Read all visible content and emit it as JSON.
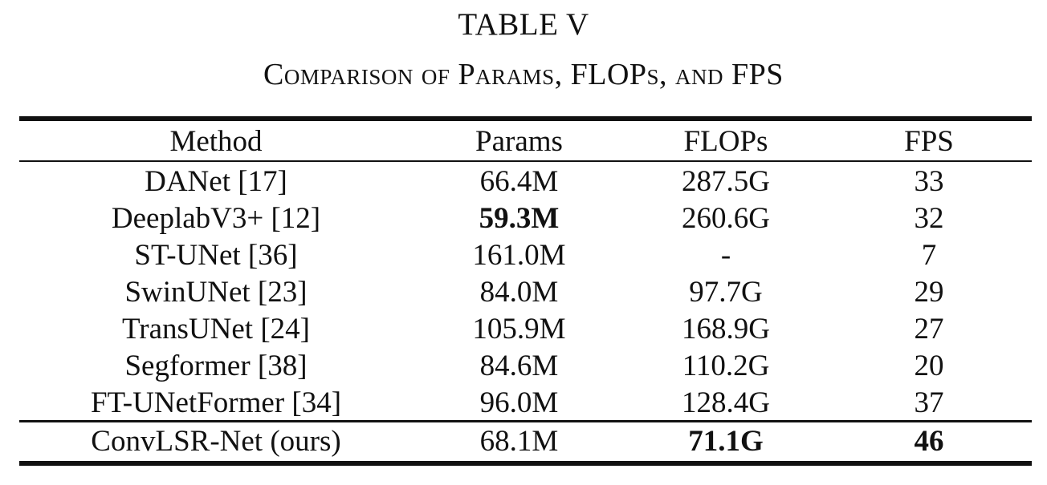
{
  "table_label": "TABLE V",
  "table_title": "Comparison of Params, FLOPs, and FPS",
  "columns": [
    "Method",
    "Params",
    "FLOPs",
    "FPS"
  ],
  "rows": [
    {
      "method": "DANet [17]",
      "params": "66.4M",
      "flops": "287.5G",
      "fps": "33"
    },
    {
      "method": "DeeplabV3+ [12]",
      "params": "59.3M",
      "flops": "260.6G",
      "fps": "32"
    },
    {
      "method": "ST-UNet [36]",
      "params": "161.0M",
      "flops": "-",
      "fps": "7"
    },
    {
      "method": "SwinUNet [23]",
      "params": "84.0M",
      "flops": "97.7G",
      "fps": "29"
    },
    {
      "method": "TransUNet [24]",
      "params": "105.9M",
      "flops": "168.9G",
      "fps": "27"
    },
    {
      "method": "Segformer [38]",
      "params": "84.6M",
      "flops": "110.2G",
      "fps": "20"
    },
    {
      "method": "FT-UNetFormer [34]",
      "params": "96.0M",
      "flops": "128.4G",
      "fps": "37"
    }
  ],
  "ours": {
    "method": "ConvLSR-Net (ours)",
    "params": "68.1M",
    "flops": "71.1G",
    "fps": "46"
  }
}
